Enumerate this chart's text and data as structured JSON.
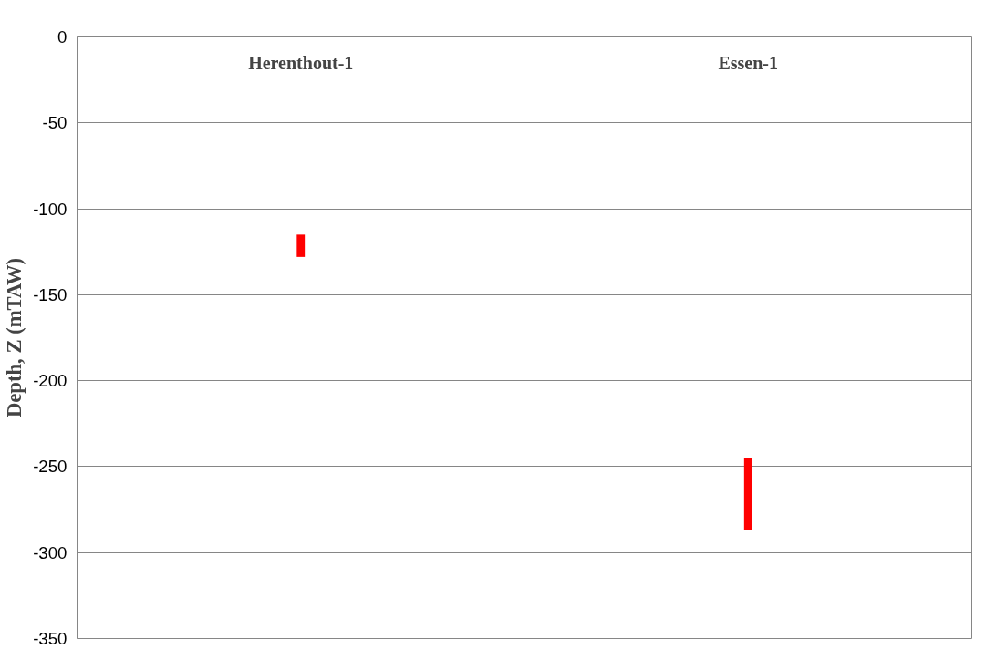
{
  "chart_data": {
    "type": "bar",
    "ylabel": "Depth, Z (mTAW)",
    "categories": [
      "Herenthout-1",
      "Essen-1"
    ],
    "values": [
      13,
      42
    ],
    "base": [
      -128,
      -287
    ],
    "color": "#ff0000",
    "ylim": [
      -350,
      0
    ],
    "yticks": [
      -350,
      -300,
      -250,
      -200,
      -150,
      -100,
      -50,
      0
    ],
    "grid": "y"
  }
}
